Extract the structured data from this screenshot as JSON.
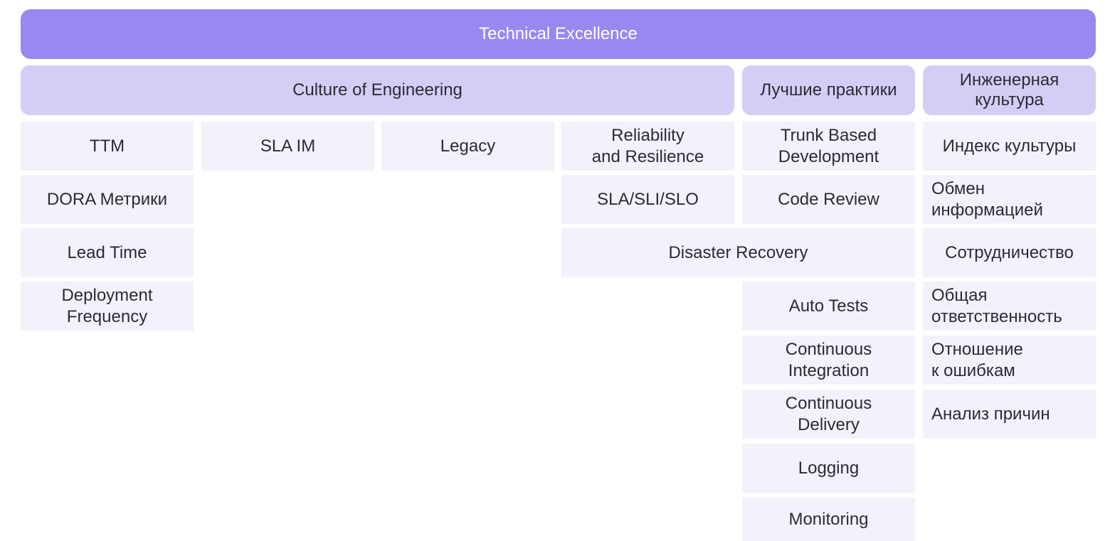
{
  "title": "Technical Excellence",
  "headers": {
    "culture_of_engineering": "Culture of Engineering",
    "best_practices": "Лучшие практики",
    "engineering_culture": "Инженерная\nкультура"
  },
  "columns": {
    "ttm": [
      "TTM",
      "DORA Метрики",
      "Lead Time",
      "Deployment\nFrequency"
    ],
    "sla_im": [
      "SLA IM"
    ],
    "legacy": [
      "Legacy"
    ],
    "reliability": [
      "Reliability\nand Resilience",
      "SLA/SLI/SLO"
    ],
    "disaster_recovery": "Disaster Recovery",
    "practices": [
      "Trunk Based\nDevelopment",
      "Code Review",
      "Auto Tests",
      "Continuous\nIntegration",
      "Continuous\nDelivery",
      "Logging",
      "Monitoring"
    ],
    "culture": [
      "Индекс культуры",
      "Обмен\nинформацией",
      "Сотрудничество",
      "Общая\nответственность",
      "Отношение\nк ошибкам",
      "Анализ причин"
    ]
  },
  "colors": {
    "top_bar": "#9b87f0",
    "header": "#d6cdf6",
    "cell": "#f3f2fb",
    "text": "#2b2b33"
  }
}
